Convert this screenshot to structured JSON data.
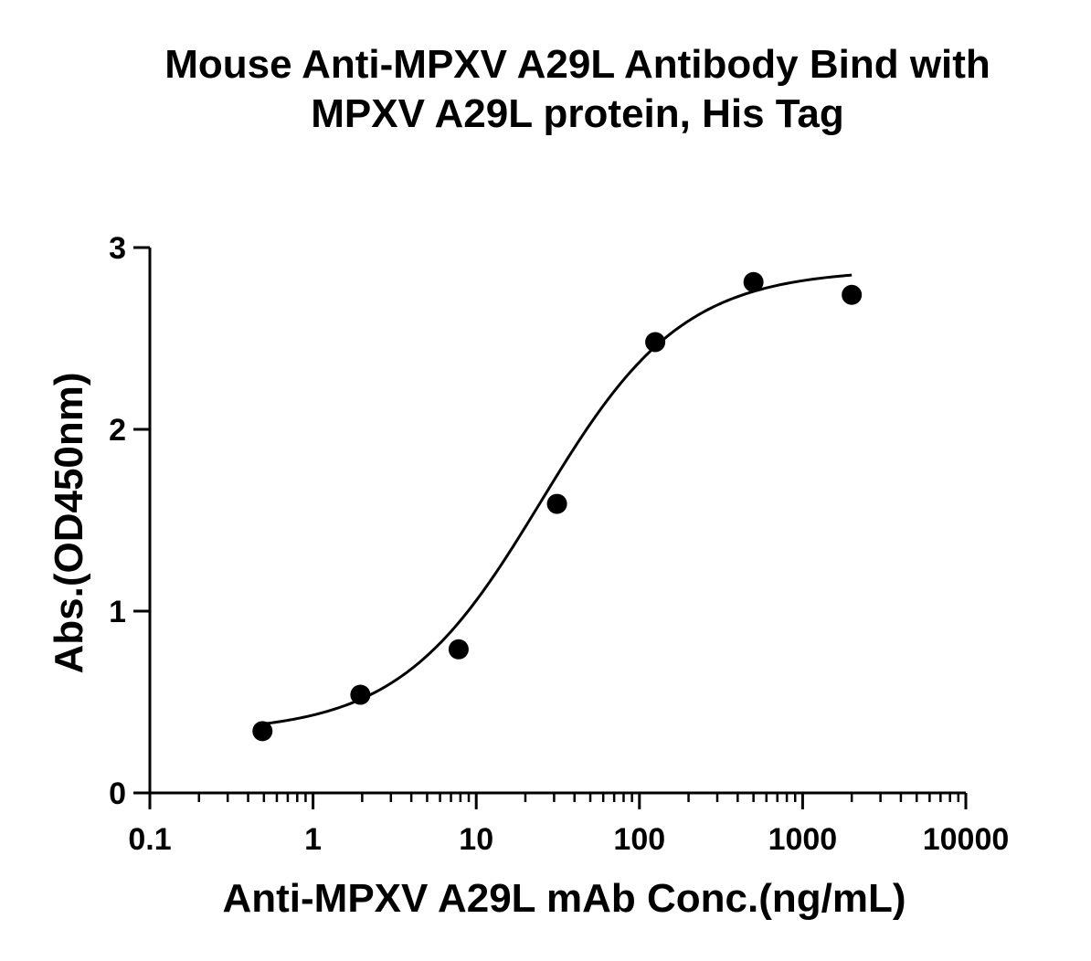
{
  "chart_data": {
    "type": "scatter",
    "title_lines": [
      "Mouse Anti-MPXV A29L  Antibody Bind with",
      "MPXV A29L  protein,  His Tag"
    ],
    "xlabel": "Anti-MPXV A29L mAb Conc.(ng/mL)",
    "ylabel": "Abs.(OD450nm)",
    "x_scale": "log",
    "xlim": [
      0.1,
      10000
    ],
    "ylim": [
      0,
      3
    ],
    "x_ticks": [
      "0.1",
      "1",
      "10",
      "100",
      "1000",
      "10000"
    ],
    "y_ticks": [
      "0",
      "1",
      "2",
      "3"
    ],
    "grid": false,
    "legend": "none",
    "series": [
      {
        "points": [
          {
            "x": 0.49,
            "y": 0.34
          },
          {
            "x": 1.95,
            "y": 0.54
          },
          {
            "x": 7.8,
            "y": 0.79
          },
          {
            "x": 31.25,
            "y": 1.59
          },
          {
            "x": 125,
            "y": 2.48
          },
          {
            "x": 500,
            "y": 2.81
          },
          {
            "x": 2000,
            "y": 2.74
          }
        ],
        "marker": "filled-circle",
        "color": "#000000"
      }
    ],
    "fit_curve": {
      "type": "4PL",
      "bottom": 0.33,
      "top": 2.88,
      "ec50": 25,
      "hill": 1.0,
      "x_range": [
        0.49,
        2000
      ],
      "color": "#000000"
    }
  }
}
